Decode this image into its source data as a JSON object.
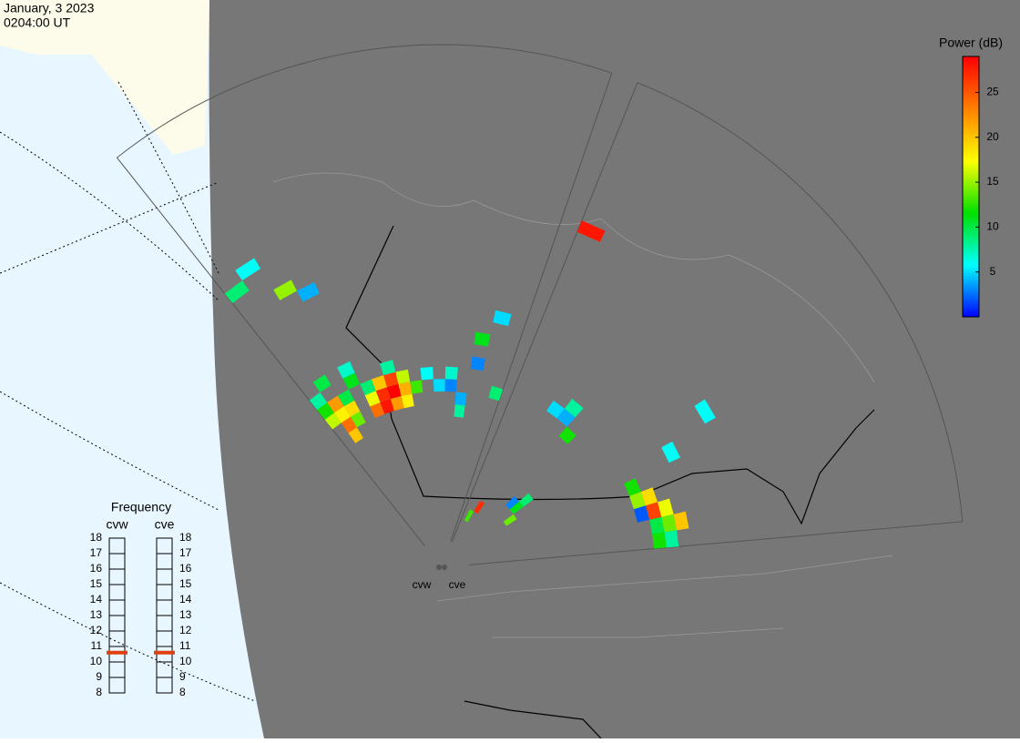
{
  "header": {
    "date": "January, 3 2023",
    "time": "0204:00 UT"
  },
  "chart_data": {
    "type": "fan",
    "colorbar": {
      "title": "Power (dB)",
      "clim": [
        0,
        29
      ],
      "ticks": [
        5,
        10,
        15,
        20,
        25
      ],
      "colors": [
        "#0000ff",
        "#00ffff",
        "#00e000",
        "#ffff00",
        "#ff8000",
        "#ff0000"
      ]
    },
    "frequency": {
      "title": "Frequency",
      "lim": [
        8,
        18
      ],
      "ticks": [
        8,
        9,
        10,
        11,
        12,
        13,
        14,
        15,
        16,
        17,
        18
      ]
    },
    "radars": [
      {
        "name": "cvw",
        "frequency": 10.6,
        "cells": {
          "beams": [
            0,
            1,
            2,
            3,
            1,
            1,
            1,
            0,
            0,
            1,
            2,
            2,
            2,
            0,
            1,
            3,
            3,
            4,
            5,
            5,
            6,
            6,
            6,
            5,
            7,
            7,
            7,
            6,
            8,
            4,
            4,
            9,
            10,
            11,
            11,
            12,
            12,
            13,
            13,
            14,
            15
          ],
          "gates": [
            25,
            26,
            23,
            22,
            10,
            11,
            12,
            12,
            13,
            13,
            12,
            11,
            13,
            14,
            15,
            14,
            15,
            13,
            11,
            12,
            12,
            13,
            11,
            13,
            12,
            13,
            11,
            14,
            12,
            12,
            11,
            13,
            12,
            12,
            13,
            11,
            10,
            14,
            16,
            18,
            12
          ],
          "values": [
            9,
            6,
            15,
            4,
            20,
            24,
            18,
            16,
            12,
            22,
            19,
            14,
            10,
            8,
            10,
            11,
            7,
            9,
            28,
            27,
            29,
            26,
            22,
            20,
            21,
            16,
            18,
            8,
            13,
            17,
            24,
            6,
            5,
            3,
            7,
            4,
            8,
            3,
            11,
            5,
            9
          ]
        }
      },
      {
        "name": "cve",
        "frequency": 10.6,
        "cells": {
          "beams": [
            0,
            3,
            4,
            4,
            5,
            9,
            7,
            7,
            6,
            8,
            11,
            12,
            12,
            13,
            13,
            14,
            14,
            14,
            15,
            15,
            13,
            10,
            2,
            1
          ],
          "gates": [
            27,
            13,
            13,
            14,
            12,
            22,
            5,
            6,
            5,
            4,
            14,
            14,
            15,
            15,
            16,
            15,
            16,
            17,
            16,
            15,
            14,
            18,
            3,
            2
          ],
          "values": [
            28,
            5,
            4,
            8,
            12,
            6,
            11,
            9,
            3,
            14,
            12,
            15,
            19,
            26,
            17,
            10,
            14,
            20,
            8,
            12,
            2,
            6,
            27,
            13
          ]
        }
      }
    ]
  }
}
